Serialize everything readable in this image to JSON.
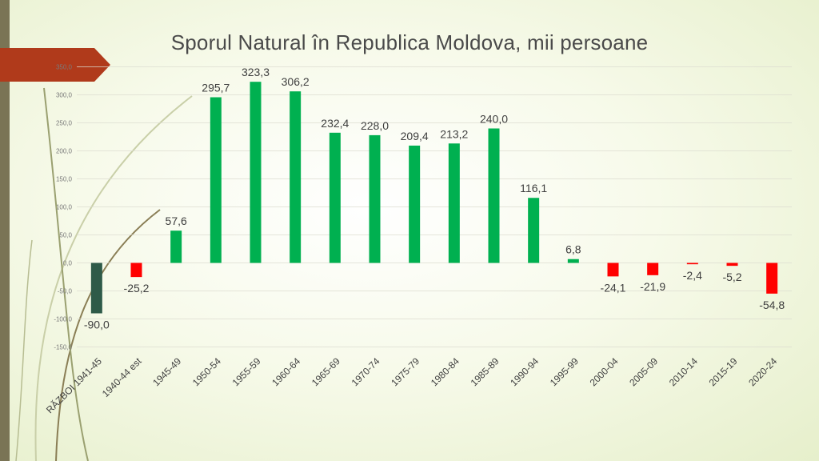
{
  "colors": {
    "positive": "#00b050",
    "negative": "#ff0000",
    "war": "#2e5a48",
    "accent": "#b03a1b"
  },
  "chart_data": {
    "type": "bar",
    "title": "Sporul Natural în Republica Moldova, mii persoane",
    "categories": [
      "RĂZBOI 1941-45",
      "1940-44 est",
      "1945-49",
      "1950-54",
      "1955-59",
      "1960-64",
      "1965-69",
      "1970-74",
      "1975-79",
      "1980-84",
      "1985-89",
      "1990-94",
      "1995-99",
      "2000-04",
      "2005-09",
      "2010-14",
      "2015-19",
      "2020-24"
    ],
    "values": [
      -90.0,
      -25.2,
      57.6,
      295.7,
      323.3,
      306.2,
      232.4,
      228.0,
      209.4,
      213.2,
      240.0,
      116.1,
      6.8,
      -24.1,
      -21.9,
      -2.4,
      -5.2,
      -54.8
    ],
    "data_labels": [
      "-90,0",
      "-25,2",
      "57,6",
      "295,7",
      "323,3",
      "306,2",
      "232,4",
      "228,0",
      "209,4",
      "213,2",
      "240,0",
      "116,1",
      "6,8",
      "-24,1",
      "-21,9",
      "-2,4",
      "-5,2",
      "-54,8"
    ],
    "y_ticks": [
      350,
      300,
      250,
      200,
      150,
      100,
      50,
      0,
      -50,
      -100,
      -150
    ],
    "y_tick_labels": [
      "350,0",
      "300,0",
      "250,0",
      "200,0",
      "150,0",
      "100,0",
      "50,0",
      "0,0",
      "-50,0",
      "-100,0",
      "-150,0"
    ],
    "ylim": [
      -150,
      350
    ],
    "xlabel": "",
    "ylabel": "",
    "grid": true
  }
}
